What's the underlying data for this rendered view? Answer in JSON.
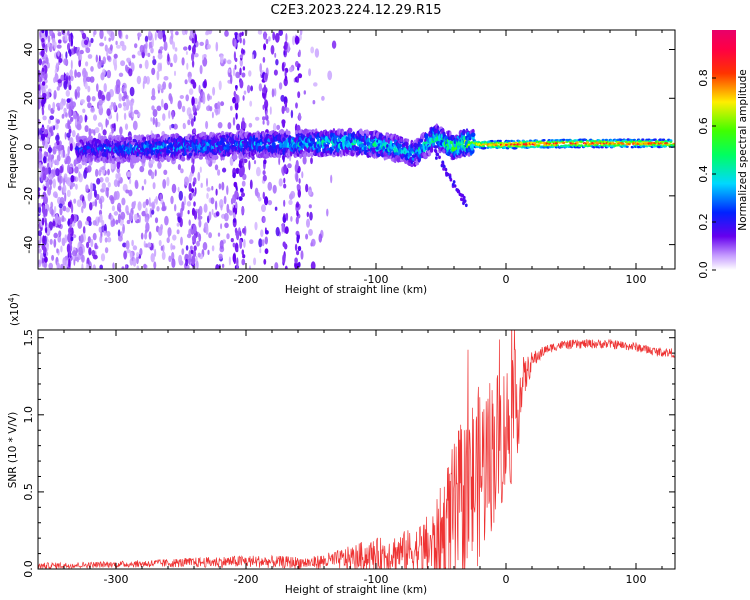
{
  "title": "C2E3.2023.224.12.29.R15",
  "chart_data": [
    {
      "type": "heatmap",
      "xlabel": "Height of straight line (km)",
      "ylabel": "Frequency (Hz)",
      "xlim": [
        -360,
        130
      ],
      "ylim": [
        -50,
        48
      ],
      "x_ticks": [
        -300,
        -200,
        -100,
        0,
        100
      ],
      "y_ticks": [
        -40,
        -20,
        0,
        20,
        40
      ],
      "x_tick_labels": [
        "-300",
        "-200",
        "-100",
        "0",
        "100"
      ],
      "y_tick_labels": [
        "-40",
        "-20",
        "0",
        "20",
        "40"
      ],
      "colorbar": {
        "label": "Normalized spectral amplitude",
        "range": [
          0,
          1
        ],
        "ticks": [
          0.0,
          0.2,
          0.4,
          0.6,
          0.8
        ],
        "tick_labels": [
          "0.0",
          "0.2",
          "0.4",
          "0.6",
          "0.8"
        ],
        "colormap": "rainbow (white-violet-blue-cyan-green-yellow-red-magenta)"
      },
      "ridge": {
        "x": [
          -330,
          -300,
          -250,
          -200,
          -150,
          -120,
          -100,
          -80,
          -70,
          -55,
          -40,
          -30,
          -20,
          0,
          50,
          100,
          130
        ],
        "frequency": [
          -1,
          -1,
          0,
          1,
          1.5,
          2,
          1,
          -1,
          -3,
          4,
          0,
          2,
          1,
          1,
          1.5,
          1.5,
          1.5
        ],
        "amplitude": [
          0.25,
          0.3,
          0.35,
          0.35,
          0.4,
          0.45,
          0.45,
          0.4,
          0.4,
          0.5,
          0.55,
          0.6,
          0.75,
          0.9,
          0.9,
          0.85,
          0.85
        ]
      },
      "noise_region_x": [
        -360,
        -150
      ]
    },
    {
      "type": "line",
      "xlabel": "Height of straight line (km)",
      "ylabel": "SNR (10 * V/V)",
      "scale_label": "(x10",
      "scale_exponent": "4",
      "xlim": [
        -360,
        130
      ],
      "ylim": [
        0,
        1.55
      ],
      "x_ticks": [
        -300,
        -200,
        -100,
        0,
        100
      ],
      "y_ticks": [
        0.0,
        0.5,
        1.0,
        1.5
      ],
      "x_tick_labels": [
        "-300",
        "-200",
        "-100",
        "0",
        "100"
      ],
      "y_tick_labels": [
        "0.0",
        "0.5",
        "1.0",
        "1.5"
      ],
      "color": "#ee3333",
      "envelope": {
        "x": [
          -360,
          -300,
          -250,
          -200,
          -150,
          -130,
          -110,
          -90,
          -70,
          -55,
          -45,
          -35,
          -25,
          -15,
          -8,
          0,
          5,
          10,
          15,
          20,
          30,
          40,
          60,
          80,
          100,
          115,
          130
        ],
        "base": [
          0.02,
          0.03,
          0.04,
          0.05,
          0.04,
          0.06,
          0.08,
          0.1,
          0.12,
          0.15,
          0.25,
          0.4,
          0.55,
          0.7,
          0.8,
          0.9,
          1.0,
          1.1,
          1.25,
          1.35,
          1.42,
          1.45,
          1.46,
          1.46,
          1.44,
          1.41,
          1.4
        ],
        "spread": [
          0.02,
          0.02,
          0.03,
          0.04,
          0.04,
          0.06,
          0.1,
          0.12,
          0.15,
          0.25,
          0.45,
          0.55,
          0.6,
          0.55,
          0.5,
          0.45,
          0.45,
          0.3,
          0.12,
          0.06,
          0.03,
          0.03,
          0.03,
          0.03,
          0.03,
          0.03,
          0.03
        ]
      }
    }
  ]
}
